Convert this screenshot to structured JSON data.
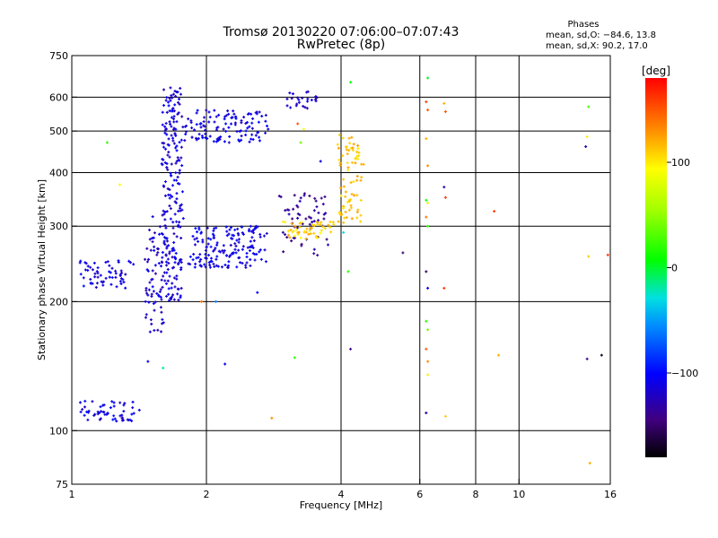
{
  "chart_data": {
    "type": "scatter",
    "title": "Tromsø 20130220 07:06:00–07:07:43",
    "subtitle": "RwPretec (8p)",
    "stats": {
      "heading": "Phases",
      "line1": "mean, sd,O: −84.6, 13.8",
      "line2": "mean, sd,X:  90.2, 17.0"
    },
    "xlabel": "Frequency [MHz]",
    "ylabel": "Stationary phase Virtual Height [km]",
    "xscale": "log",
    "yscale": "log",
    "xlim": [
      1,
      16
    ],
    "ylim": [
      75,
      750
    ],
    "xticks": [
      1,
      2,
      4,
      6,
      8,
      10,
      16
    ],
    "xtick_labels": [
      "1",
      "2",
      "4",
      "6",
      "8",
      "10",
      "16"
    ],
    "yticks": [
      75,
      100,
      200,
      300,
      400,
      500,
      600,
      750
    ],
    "ytick_labels": [
      "75",
      "100",
      "200",
      "300",
      "400",
      "500",
      "600",
      "750"
    ],
    "grid_x": [
      2,
      4,
      6,
      8,
      10
    ],
    "grid_y": [
      100,
      200,
      300,
      400,
      500,
      600
    ],
    "colorbar": {
      "label": "[deg]",
      "range": [
        -180,
        180
      ],
      "ticks": [
        -100,
        0,
        100
      ],
      "tick_labels": [
        "−100",
        "0",
        "100"
      ]
    },
    "series": [
      {
        "x_range": [
          1.03,
          1.43
        ],
        "y_range": [
          105,
          118
        ],
        "phase": -108,
        "n": 55
      },
      {
        "x_range": [
          1.02,
          1.38
        ],
        "y_range": [
          215,
          250
        ],
        "phase": -110,
        "n": 60
      },
      {
        "x_range": [
          1.45,
          1.62
        ],
        "y_range": [
          170,
          320
        ],
        "phase": -115,
        "n": 70
      },
      {
        "x_range": [
          1.58,
          1.78
        ],
        "y_range": [
          200,
          640
        ],
        "phase": -112,
        "n": 220
      },
      {
        "x_range": [
          1.75,
          2.8
        ],
        "y_range": [
          470,
          560
        ],
        "phase": -110,
        "n": 120
      },
      {
        "x_range": [
          1.8,
          2.75
        ],
        "y_range": [
          240,
          300
        ],
        "phase": -108,
        "n": 160
      },
      {
        "x_range": [
          3.0,
          3.6
        ],
        "y_range": [
          560,
          620
        ],
        "phase": -120,
        "n": 25
      },
      {
        "x_range": [
          2.9,
          3.8
        ],
        "y_range": [
          255,
          360
        ],
        "phase": -135,
        "n": 60
      },
      {
        "x_range": [
          2.95,
          3.9
        ],
        "y_range": [
          280,
          310
        ],
        "phase": 110,
        "n": 50
      },
      {
        "x_range": [
          3.9,
          4.5
        ],
        "y_range": [
          300,
          490
        ],
        "phase": 112,
        "n": 80
      }
    ],
    "sparse_points": [
      {
        "x": 1.2,
        "y": 470,
        "phase": 20
      },
      {
        "x": 1.28,
        "y": 375,
        "phase": 95
      },
      {
        "x": 1.48,
        "y": 145,
        "phase": -100
      },
      {
        "x": 1.6,
        "y": 140,
        "phase": -20
      },
      {
        "x": 1.95,
        "y": 200,
        "phase": 140
      },
      {
        "x": 2.1,
        "y": 200,
        "phase": -60
      },
      {
        "x": 2.2,
        "y": 143,
        "phase": -110
      },
      {
        "x": 2.6,
        "y": 210,
        "phase": -100
      },
      {
        "x": 2.8,
        "y": 107,
        "phase": 130
      },
      {
        "x": 3.15,
        "y": 148,
        "phase": 20
      },
      {
        "x": 3.25,
        "y": 470,
        "phase": 40
      },
      {
        "x": 3.2,
        "y": 520,
        "phase": 150
      },
      {
        "x": 3.3,
        "y": 505,
        "phase": 90
      },
      {
        "x": 3.6,
        "y": 425,
        "phase": -110
      },
      {
        "x": 4.05,
        "y": 290,
        "phase": -30
      },
      {
        "x": 4.15,
        "y": 235,
        "phase": 20
      },
      {
        "x": 4.2,
        "y": 155,
        "phase": -140
      },
      {
        "x": 4.2,
        "y": 650,
        "phase": 10
      },
      {
        "x": 5.5,
        "y": 260,
        "phase": -150
      },
      {
        "x": 6.25,
        "y": 665,
        "phase": 0
      },
      {
        "x": 6.2,
        "y": 585,
        "phase": 160
      },
      {
        "x": 6.25,
        "y": 560,
        "phase": 150
      },
      {
        "x": 6.2,
        "y": 480,
        "phase": 120
      },
      {
        "x": 6.25,
        "y": 415,
        "phase": 130
      },
      {
        "x": 6.2,
        "y": 345,
        "phase": 10
      },
      {
        "x": 6.25,
        "y": 340,
        "phase": 80
      },
      {
        "x": 6.2,
        "y": 315,
        "phase": 140
      },
      {
        "x": 6.25,
        "y": 300,
        "phase": 20
      },
      {
        "x": 6.2,
        "y": 235,
        "phase": -150
      },
      {
        "x": 6.25,
        "y": 215,
        "phase": -110
      },
      {
        "x": 6.2,
        "y": 180,
        "phase": 20
      },
      {
        "x": 6.25,
        "y": 172,
        "phase": 40
      },
      {
        "x": 6.2,
        "y": 155,
        "phase": 150
      },
      {
        "x": 6.25,
        "y": 145,
        "phase": 130
      },
      {
        "x": 6.25,
        "y": 135,
        "phase": 100
      },
      {
        "x": 6.2,
        "y": 110,
        "phase": -130
      },
      {
        "x": 6.8,
        "y": 580,
        "phase": 120
      },
      {
        "x": 6.85,
        "y": 555,
        "phase": 150
      },
      {
        "x": 6.8,
        "y": 370,
        "phase": -130
      },
      {
        "x": 6.85,
        "y": 350,
        "phase": 160
      },
      {
        "x": 6.8,
        "y": 215,
        "phase": 160
      },
      {
        "x": 6.85,
        "y": 108,
        "phase": 110
      },
      {
        "x": 8.8,
        "y": 325,
        "phase": 160
      },
      {
        "x": 9.0,
        "y": 150,
        "phase": 120
      },
      {
        "x": 14.3,
        "y": 570,
        "phase": 30
      },
      {
        "x": 14.2,
        "y": 485,
        "phase": 100
      },
      {
        "x": 14.1,
        "y": 460,
        "phase": -130
      },
      {
        "x": 14.3,
        "y": 255,
        "phase": 110
      },
      {
        "x": 14.2,
        "y": 147,
        "phase": -140
      },
      {
        "x": 14.4,
        "y": 84,
        "phase": 120
      },
      {
        "x": 15.3,
        "y": 150,
        "phase": -170
      },
      {
        "x": 15.8,
        "y": 257,
        "phase": 160
      }
    ]
  }
}
